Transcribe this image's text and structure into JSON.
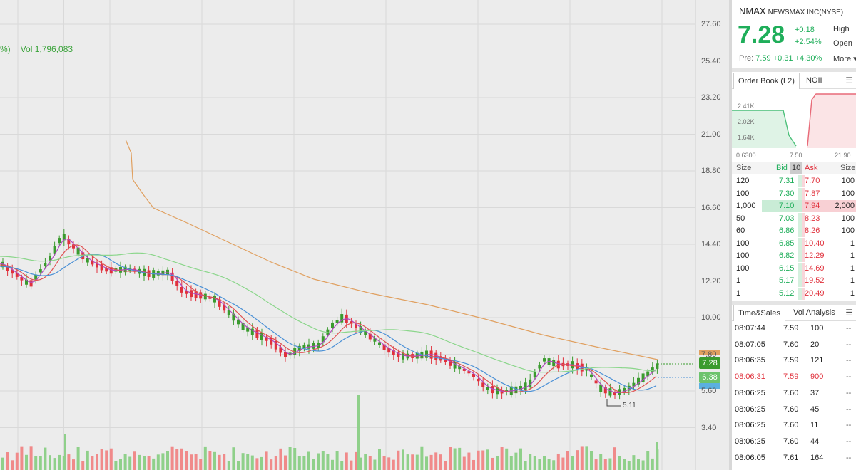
{
  "chart": {
    "vol_prefix": "%)",
    "vol_text": "Vol 1,796,083",
    "y_ticks": [
      "27.60",
      "25.40",
      "23.20",
      "21.00",
      "18.80",
      "16.60",
      "14.40",
      "12.20",
      "10.00",
      "7.80",
      "5.60",
      "3.40"
    ],
    "last_price_tag": "7.28",
    "second_price_tag": "6.38",
    "low_marker": "5.11",
    "colors": {
      "up": "#3a9b2e",
      "down": "#e0313c",
      "ma_orange": "#e0a060",
      "ma_green": "#8bd68b",
      "ma_blue": "#4a90d6",
      "ma_red": "#e05050",
      "ma_purple": "#b04ac0",
      "vol_up": "#8fd08a",
      "vol_down": "#f08a8a"
    }
  },
  "quote": {
    "symbol": "NMAX",
    "company": "NEWSMAX INC(NYSE)",
    "last": "7.28",
    "change": "+0.18",
    "change_pct": "+2.54%",
    "high_label": "High",
    "open_label": "Open",
    "more_label": "More",
    "pre_label": "Pre:",
    "pre_value": "7.59 +0.31 +4.30%"
  },
  "order_book": {
    "tabs": [
      "Order Book (L2)",
      "NOII"
    ],
    "depth_labels": {
      "y": [
        "2.41K",
        "2.02K",
        "1.64K"
      ],
      "x": [
        "0.6300",
        "7.50",
        "21.90"
      ]
    },
    "headers": {
      "size": "Size",
      "bid": "Bid",
      "levels": "10",
      "ask": "Ask",
      "size2": "Size"
    },
    "rows": [
      {
        "bsize": "120",
        "bid": "7.31",
        "ask": "7.70",
        "asize": "100"
      },
      {
        "bsize": "100",
        "bid": "7.30",
        "ask": "7.87",
        "asize": "100"
      },
      {
        "bsize": "1,000",
        "bid": "7.10",
        "ask": "7.94",
        "asize": "2,000"
      },
      {
        "bsize": "50",
        "bid": "7.03",
        "ask": "8.23",
        "asize": "100"
      },
      {
        "bsize": "60",
        "bid": "6.86",
        "ask": "8.26",
        "asize": "100"
      },
      {
        "bsize": "100",
        "bid": "6.85",
        "ask": "10.40",
        "asize": "1"
      },
      {
        "bsize": "100",
        "bid": "6.82",
        "ask": "12.29",
        "asize": "1"
      },
      {
        "bsize": "100",
        "bid": "6.15",
        "ask": "14.69",
        "asize": "1"
      },
      {
        "bsize": "1",
        "bid": "5.17",
        "ask": "19.52",
        "asize": "1"
      },
      {
        "bsize": "1",
        "bid": "5.12",
        "ask": "20.49",
        "asize": "1"
      }
    ]
  },
  "time_sales": {
    "tabs": [
      "Time&Sales",
      "Vol Analysis"
    ],
    "rows": [
      {
        "time": "08:07:44",
        "price": "7.59",
        "size": "100",
        "flag": "--",
        "color": "#222"
      },
      {
        "time": "08:07:05",
        "price": "7.60",
        "size": "20",
        "flag": "--",
        "color": "#222"
      },
      {
        "time": "08:06:35",
        "price": "7.59",
        "size": "121",
        "flag": "--",
        "color": "#222"
      },
      {
        "time": "08:06:31",
        "price": "7.59",
        "size": "900",
        "flag": "--",
        "color": "#e0313c"
      },
      {
        "time": "08:06:25",
        "price": "7.60",
        "size": "37",
        "flag": "--",
        "color": "#222"
      },
      {
        "time": "08:06:25",
        "price": "7.60",
        "size": "45",
        "flag": "--",
        "color": "#222"
      },
      {
        "time": "08:06:25",
        "price": "7.60",
        "size": "11",
        "flag": "--",
        "color": "#222"
      },
      {
        "time": "08:06:25",
        "price": "7.60",
        "size": "44",
        "flag": "--",
        "color": "#222"
      },
      {
        "time": "08:06:05",
        "price": "7.61",
        "size": "164",
        "flag": "--",
        "color": "#222"
      },
      {
        "time": "08:06:05",
        "price": "7.61",
        "size": "100",
        "flag": "--",
        "color": "#222"
      }
    ]
  }
}
